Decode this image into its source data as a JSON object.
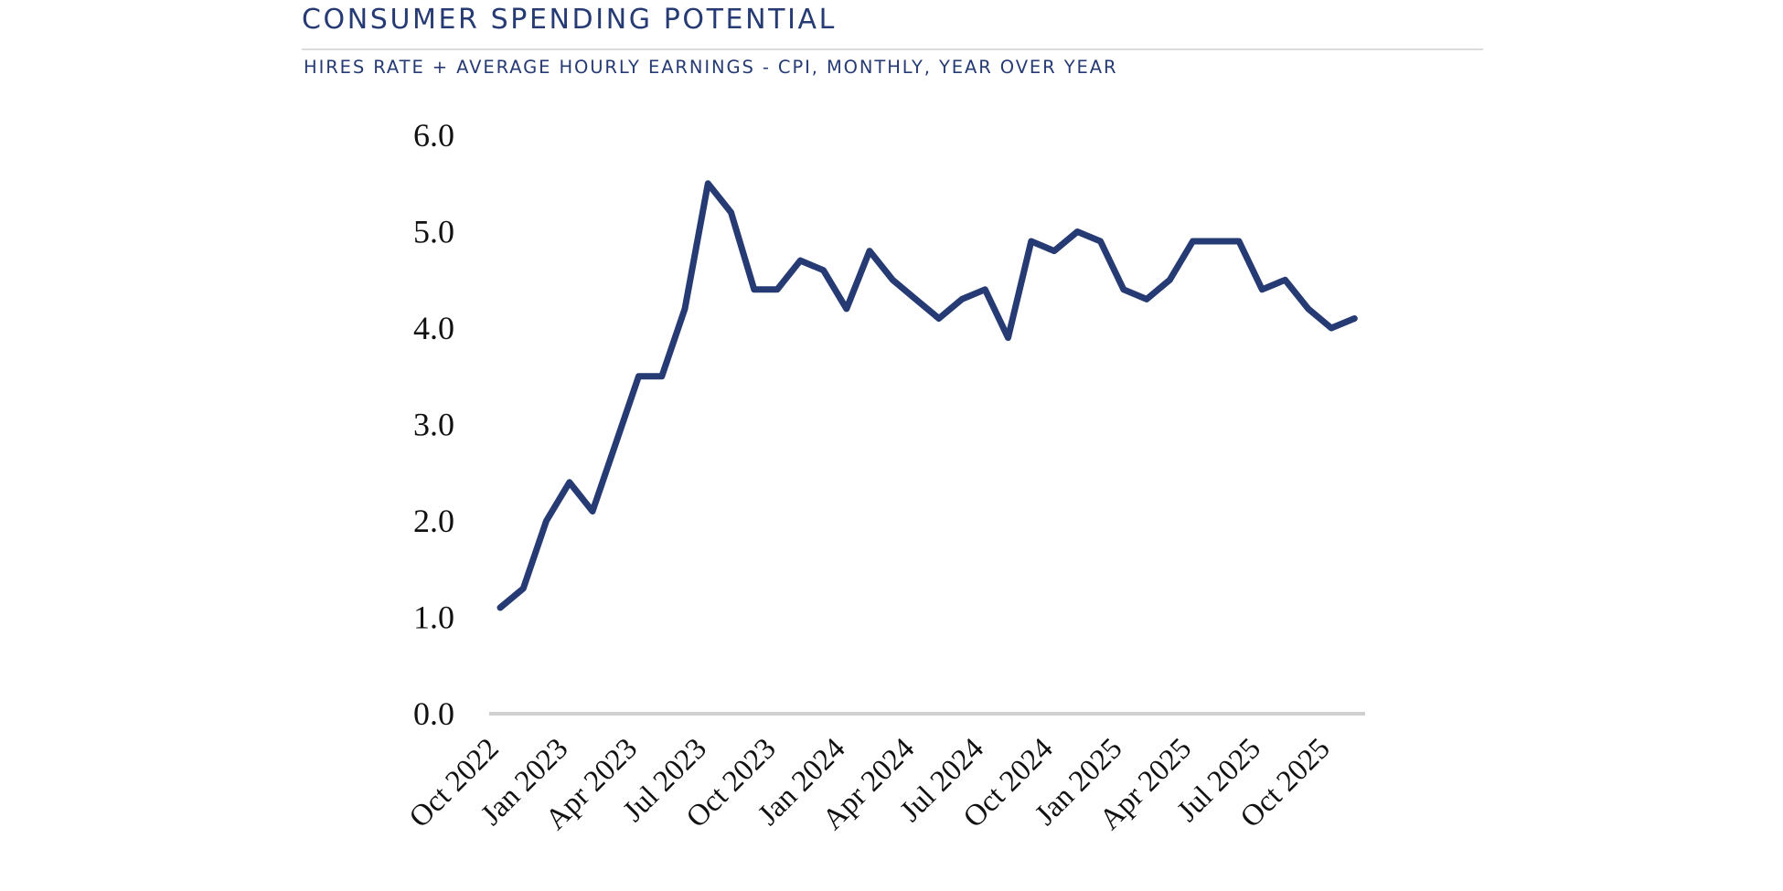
{
  "header": {
    "title": "CONSUMER SPENDING POTENTIAL",
    "subtitle": "HIRES RATE + AVERAGE HOURLY EARNINGS - CPI, MONTHLY, YEAR OVER YEAR"
  },
  "chart_data": {
    "type": "line",
    "title": "CONSUMER SPENDING POTENTIAL",
    "subtitle": "HIRES RATE + AVERAGE HOURLY EARNINGS - CPI, MONTHLY, YEAR OVER YEAR",
    "xlabel": "",
    "ylabel": "",
    "ylim": [
      0,
      6
    ],
    "yticks": [
      "0.0",
      "1.0",
      "2.0",
      "3.0",
      "4.0",
      "5.0",
      "6.0"
    ],
    "xtick_labels": [
      "Oct 2022",
      "Jan 2023",
      "Apr 2023",
      "Jul 2023",
      "Oct 2023",
      "Jan 2024",
      "Apr 2024",
      "Jul 2024",
      "Oct 2024",
      "Jan 2025",
      "Apr 2025",
      "Jul 2025",
      "Oct 2025"
    ],
    "grid": false,
    "line_color": "#263a73",
    "axis_color": "#d0d0d0",
    "x": [
      "Oct 2022",
      "Nov 2022",
      "Dec 2022",
      "Jan 2023",
      "Feb 2023",
      "Mar 2023",
      "Apr 2023",
      "May 2023",
      "Jun 2023",
      "Jul 2023",
      "Aug 2023",
      "Sep 2023",
      "Oct 2023",
      "Nov 2023",
      "Dec 2023",
      "Jan 2024",
      "Feb 2024",
      "Mar 2024",
      "Apr 2024",
      "May 2024",
      "Jun 2024",
      "Jul 2024",
      "Aug 2024",
      "Sep 2024",
      "Oct 2024",
      "Nov 2024",
      "Dec 2024",
      "Jan 2025",
      "Feb 2025",
      "Mar 2025",
      "Apr 2025",
      "May 2025",
      "Jun 2025",
      "Jul 2025",
      "Aug 2025",
      "Sep 2025",
      "Oct 2025",
      "Nov 2025"
    ],
    "values": [
      1.1,
      1.3,
      2.0,
      2.4,
      2.1,
      2.8,
      3.5,
      3.5,
      4.2,
      5.5,
      5.2,
      4.4,
      4.4,
      4.7,
      4.6,
      4.2,
      4.8,
      4.5,
      4.3,
      4.1,
      4.3,
      4.4,
      3.9,
      4.9,
      4.8,
      5.0,
      4.9,
      4.4,
      4.3,
      4.5,
      4.9,
      4.9,
      4.9,
      4.4,
      4.5,
      4.2,
      4.0,
      4.1
    ]
  }
}
